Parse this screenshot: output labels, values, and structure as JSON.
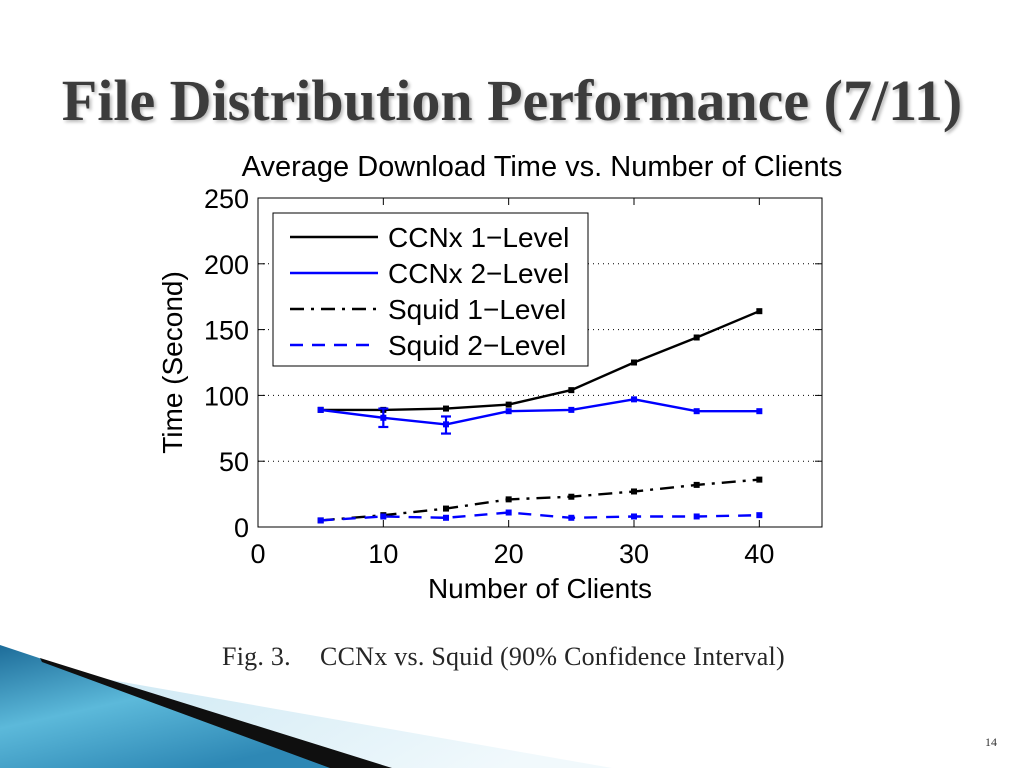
{
  "slide": {
    "title": "File Distribution Performance (7/11)",
    "caption": {
      "label": "Fig. 3.",
      "text": "CCNx vs. Squid (90% Confidence Interval)"
    },
    "page_number": "14",
    "colors": {
      "title": "#3c3c3c",
      "wave_blue_dark": "#1d6c99",
      "wave_blue_light": "#5cb9da",
      "wave_blue_mid": "#2e88b5",
      "wave_stripe": "#0f0f0f",
      "wave_pale": "#cfe9f4",
      "wave_pale_light": "#f1f9fc"
    }
  },
  "chart_data": {
    "type": "line",
    "title": "Average Download Time vs. Number of Clients",
    "xlabel": "Number of Clients",
    "ylabel": "Time (Second)",
    "xlim": [
      0,
      45
    ],
    "ylim": [
      0,
      250
    ],
    "xticks": [
      0,
      10,
      20,
      30,
      40
    ],
    "yticks": [
      0,
      50,
      100,
      150,
      200,
      250
    ],
    "grid": {
      "x": false,
      "y": true
    },
    "legend_position": "top-left",
    "x": [
      5,
      10,
      15,
      20,
      25,
      30,
      35,
      40
    ],
    "series": [
      {
        "name": "CCNx 1−Level",
        "color": "#000000",
        "line_style": "solid",
        "marker": "square",
        "values": [
          89,
          89,
          90,
          93,
          104,
          125,
          144,
          164
        ]
      },
      {
        "name": "CCNx 2−Level",
        "color": "#0000ff",
        "line_style": "solid",
        "marker": "square",
        "values": [
          89,
          83,
          78,
          88,
          89,
          97,
          88,
          88
        ],
        "error_bars": [
          {
            "x": 10,
            "low": 76,
            "high": 90
          },
          {
            "x": 15,
            "low": 71,
            "high": 84
          }
        ]
      },
      {
        "name": "Squid 1−Level",
        "color": "#000000",
        "line_style": "dash-dot",
        "marker": "square",
        "values": [
          5,
          9,
          14,
          21,
          23,
          27,
          32,
          36
        ]
      },
      {
        "name": "Squid 2−Level",
        "color": "#0000ff",
        "line_style": "dashed",
        "marker": "square",
        "values": [
          5,
          8,
          7,
          11,
          7,
          8,
          8,
          9
        ]
      }
    ]
  }
}
